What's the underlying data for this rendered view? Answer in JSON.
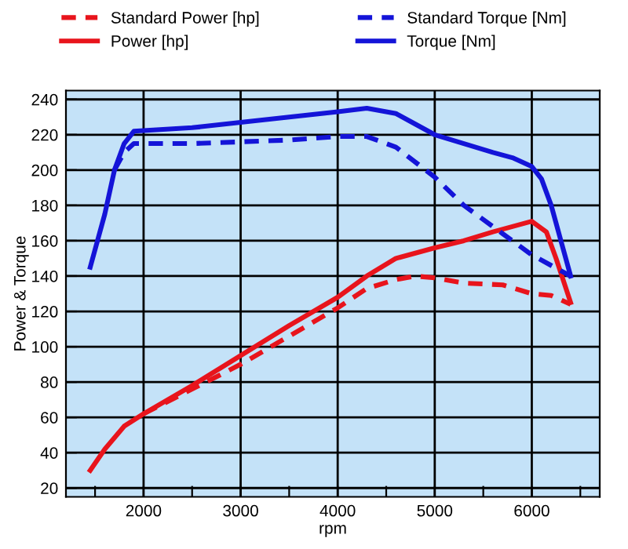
{
  "chart_data": {
    "type": "line",
    "xlabel": "rpm",
    "ylabel": "Power & Torque",
    "xlim": [
      1200,
      6700
    ],
    "xticks": [
      {
        "value": 1500,
        "label": null
      },
      2000,
      {
        "value": 2500,
        "label": null
      },
      3000,
      {
        "value": 3500,
        "label": null
      },
      4000,
      {
        "value": 4500,
        "label": null
      },
      5000,
      {
        "value": 5500,
        "label": null
      },
      6000,
      {
        "value": 6500,
        "label": null
      }
    ],
    "ylim": [
      15,
      245
    ],
    "yticks": [
      20,
      40,
      60,
      80,
      100,
      120,
      140,
      160,
      180,
      200,
      220,
      240
    ],
    "grid": true,
    "legend": "top",
    "marker": "none",
    "series": [
      {
        "name": "Standard Power [hp]",
        "color": "#e8141c",
        "line_style": "dashed",
        "x": [
          2000,
          2500,
          3000,
          3500,
          4000,
          4300,
          4600,
          4800,
          5000,
          5300,
          5700,
          6000,
          6200,
          6400
        ],
        "values": [
          62,
          76,
          90,
          106,
          122,
          133,
          138,
          140,
          139,
          136,
          135,
          130,
          129,
          124
        ]
      },
      {
        "name": "Power [hp]",
        "color": "#e8141c",
        "line_style": "solid",
        "x": [
          1450,
          1600,
          1800,
          2000,
          2500,
          3000,
          3500,
          4000,
          4300,
          4600,
          5000,
          5300,
          5600,
          5800,
          6000,
          6150,
          6250,
          6400
        ],
        "values": [
          30,
          42,
          55,
          62,
          78,
          95,
          112,
          128,
          140,
          150,
          156,
          160,
          165,
          168,
          171,
          165,
          150,
          125
        ]
      },
      {
        "name": "Standard Torque [Nm]",
        "color": "#1414d8",
        "line_style": "dashed",
        "x": [
          1700,
          1800,
          1900,
          2500,
          3000,
          3500,
          4000,
          4300,
          4600,
          5000,
          5300,
          5700,
          6000,
          6200,
          6400
        ],
        "values": [
          200,
          210,
          215,
          215,
          216,
          217,
          219,
          219,
          213,
          196,
          180,
          164,
          152,
          146,
          140
        ]
      },
      {
        "name": "Torque [Nm]",
        "color": "#1414d8",
        "line_style": "solid",
        "x": [
          1450,
          1600,
          1700,
          1800,
          1900,
          2500,
          3000,
          3500,
          4000,
          4300,
          4600,
          4800,
          5000,
          5300,
          5600,
          5800,
          6000,
          6100,
          6200,
          6300,
          6400
        ],
        "values": [
          145,
          175,
          200,
          215,
          222,
          224,
          227,
          230,
          233,
          235,
          232,
          226,
          220,
          215,
          210,
          207,
          202,
          195,
          180,
          160,
          140
        ]
      }
    ]
  }
}
